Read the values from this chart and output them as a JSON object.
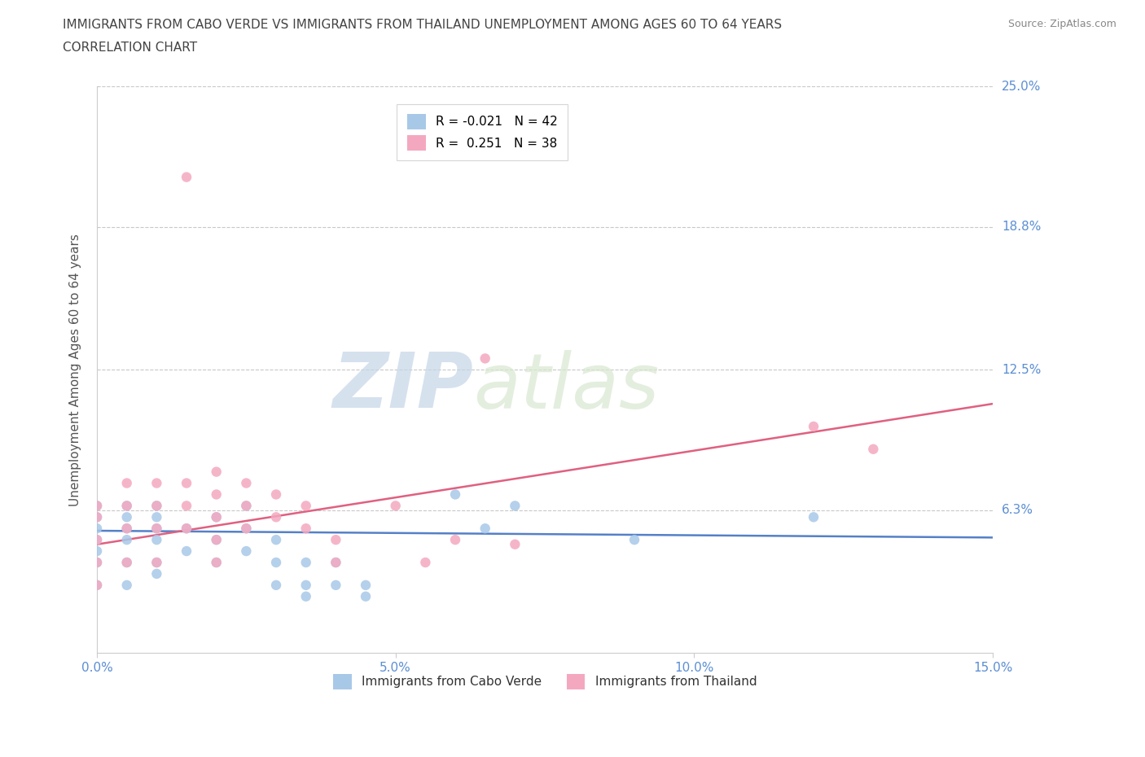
{
  "title_line1": "IMMIGRANTS FROM CABO VERDE VS IMMIGRANTS FROM THAILAND UNEMPLOYMENT AMONG AGES 60 TO 64 YEARS",
  "title_line2": "CORRELATION CHART",
  "source": "Source: ZipAtlas.com",
  "ylabel": "Unemployment Among Ages 60 to 64 years",
  "xlim": [
    0.0,
    0.15
  ],
  "ylim": [
    0.0,
    0.25
  ],
  "xticks": [
    0.0,
    0.05,
    0.1,
    0.15
  ],
  "xtick_labels": [
    "0.0%",
    "5.0%",
    "10.0%",
    "15.0%"
  ],
  "yticks": [
    0.0,
    0.063,
    0.125,
    0.188,
    0.25
  ],
  "ytick_labels": [
    "",
    "6.3%",
    "12.5%",
    "18.8%",
    "25.0%"
  ],
  "grid_color": "#c8c8c8",
  "background_color": "#ffffff",
  "cabo_verde_color": "#a8c8e8",
  "thailand_color": "#f4a8c0",
  "cabo_verde_line_color": "#5580c8",
  "thailand_line_color": "#e06080",
  "cabo_verde_label": "Immigrants from Cabo Verde",
  "thailand_label": "Immigrants from Thailand",
  "cabo_verde_R": -0.021,
  "cabo_verde_N": 42,
  "thailand_R": 0.251,
  "thailand_N": 38,
  "cabo_verde_x": [
    0.0,
    0.0,
    0.0,
    0.0,
    0.0,
    0.0,
    0.0,
    0.005,
    0.005,
    0.005,
    0.005,
    0.005,
    0.005,
    0.01,
    0.01,
    0.01,
    0.01,
    0.01,
    0.01,
    0.015,
    0.015,
    0.02,
    0.02,
    0.02,
    0.025,
    0.025,
    0.025,
    0.03,
    0.03,
    0.03,
    0.035,
    0.035,
    0.035,
    0.04,
    0.04,
    0.045,
    0.045,
    0.06,
    0.065,
    0.07,
    0.09,
    0.12
  ],
  "cabo_verde_y": [
    0.03,
    0.04,
    0.045,
    0.05,
    0.055,
    0.06,
    0.065,
    0.03,
    0.04,
    0.05,
    0.055,
    0.06,
    0.065,
    0.035,
    0.04,
    0.05,
    0.055,
    0.06,
    0.065,
    0.045,
    0.055,
    0.04,
    0.05,
    0.06,
    0.045,
    0.055,
    0.065,
    0.03,
    0.04,
    0.05,
    0.025,
    0.03,
    0.04,
    0.03,
    0.04,
    0.025,
    0.03,
    0.07,
    0.055,
    0.065,
    0.05,
    0.06
  ],
  "thailand_x": [
    0.0,
    0.0,
    0.0,
    0.0,
    0.0,
    0.005,
    0.005,
    0.005,
    0.005,
    0.01,
    0.01,
    0.01,
    0.01,
    0.015,
    0.015,
    0.015,
    0.015,
    0.02,
    0.02,
    0.02,
    0.02,
    0.02,
    0.025,
    0.025,
    0.025,
    0.03,
    0.03,
    0.035,
    0.035,
    0.04,
    0.04,
    0.05,
    0.055,
    0.06,
    0.065,
    0.07,
    0.12,
    0.13
  ],
  "thailand_y": [
    0.03,
    0.04,
    0.05,
    0.06,
    0.065,
    0.04,
    0.055,
    0.065,
    0.075,
    0.04,
    0.055,
    0.065,
    0.075,
    0.055,
    0.065,
    0.075,
    0.21,
    0.04,
    0.05,
    0.06,
    0.07,
    0.08,
    0.055,
    0.065,
    0.075,
    0.06,
    0.07,
    0.055,
    0.065,
    0.04,
    0.05,
    0.065,
    0.04,
    0.05,
    0.13,
    0.048,
    0.1,
    0.09
  ],
  "watermark_zip": "ZIP",
  "watermark_atlas": "atlas",
  "title_color": "#444444",
  "axis_label_color": "#555555",
  "tick_label_color": "#5b8ed4"
}
